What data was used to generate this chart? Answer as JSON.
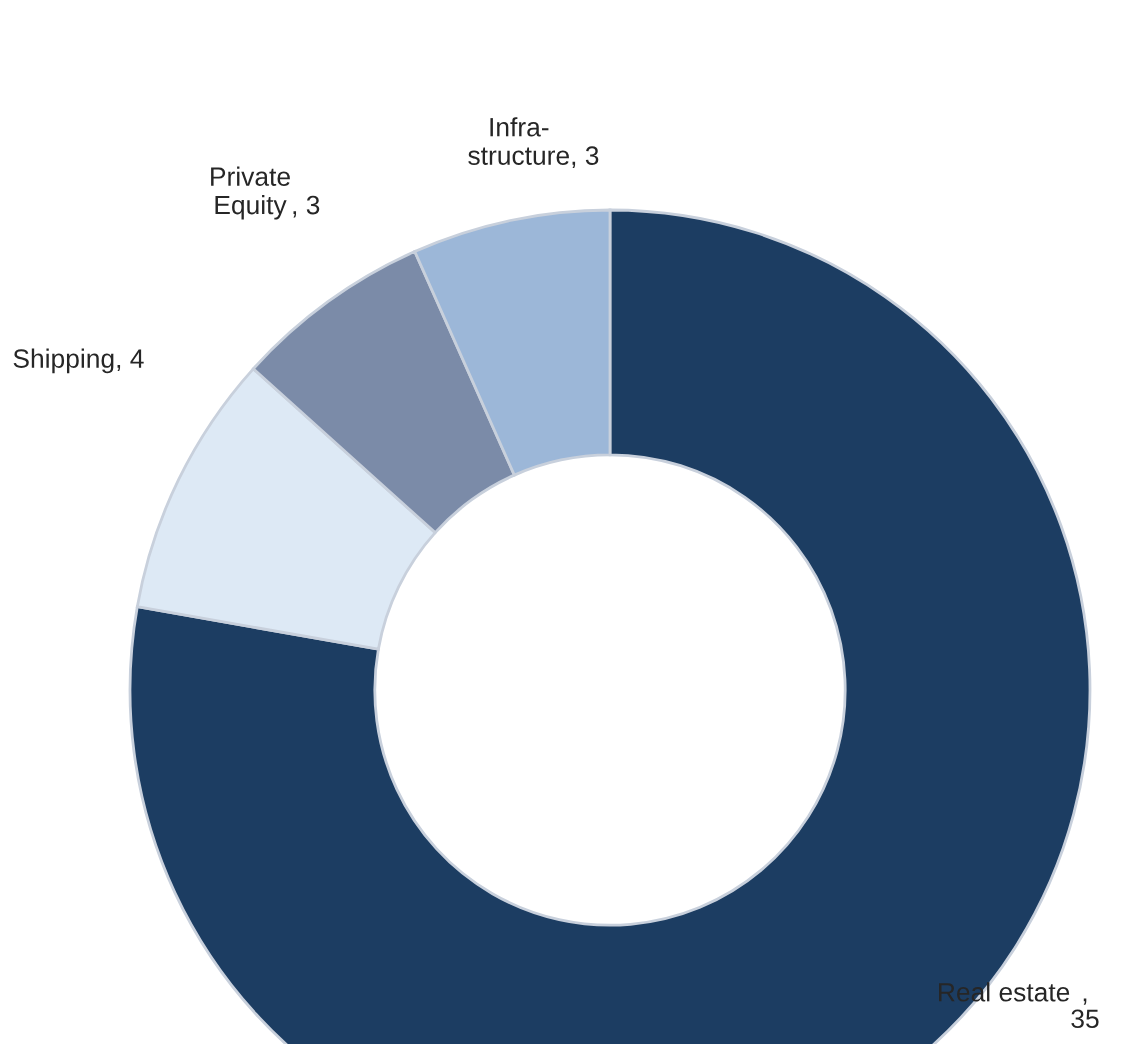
{
  "chart_data": {
    "type": "donut",
    "categories": [
      "Real estate",
      "Shipping",
      "Private\nEquity",
      "Infra-\nstructure"
    ],
    "values": [
      35,
      4,
      3,
      3
    ],
    "colors": [
      "#1c3d62",
      "#dde9f5",
      "#7b8ba8",
      "#9cb7d8"
    ],
    "value_labels": [
      ",\n35",
      ", 4",
      ", 3",
      ", 3"
    ]
  }
}
